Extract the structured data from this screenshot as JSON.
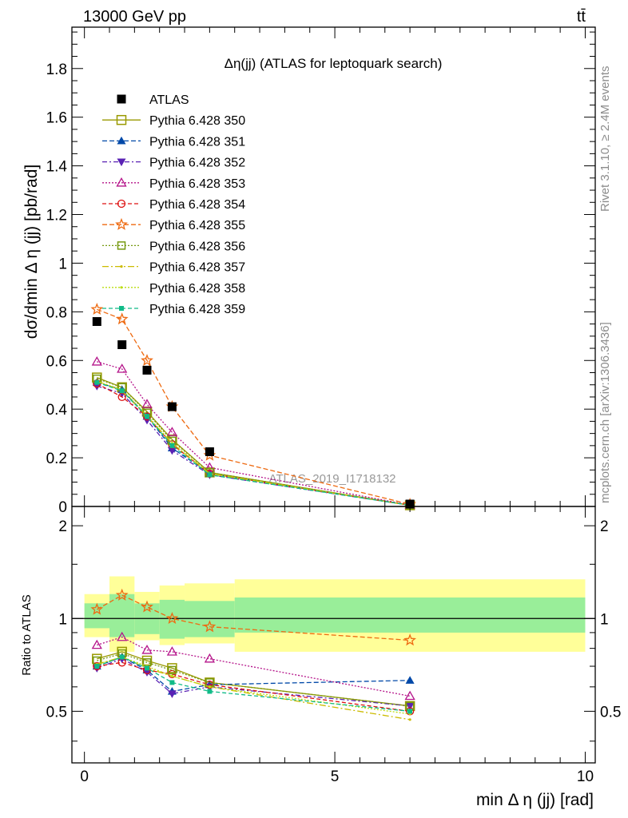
{
  "header": {
    "left_label": "13000 GeV pp",
    "right_label": "tt̄"
  },
  "side_labels": {
    "rivet": "Rivet 3.1.10, ≥ 2.4M events",
    "mcplots": "mcplots.cern.ch [arXiv:1306.3436]"
  },
  "chart_data": [
    {
      "type": "scatter",
      "title": "Δη(jj) (ATLAS for leptoquark search)",
      "watermark": "ATLAS_2019_I1718132",
      "ylabel": "dσ/dmin Δ η (jj) [pb/rad]",
      "xlabel": "min Δ η (jj) [rad]",
      "xlim": [
        -0.25,
        10.2
      ],
      "ylim": [
        0,
        1.97
      ],
      "x_ticks": [
        0,
        5,
        10
      ],
      "y_ticks": [
        0,
        0.2,
        0.4,
        0.6,
        0.8,
        1,
        1.2,
        1.4,
        1.6,
        1.8
      ],
      "y_tick_labels": [
        "0",
        "0.2",
        "0.4",
        "0.6",
        "0.8",
        "1",
        "1.2",
        "1.4",
        "1.6",
        "1.8"
      ],
      "legend_position": "top-left",
      "x": [
        0.25,
        0.75,
        1.25,
        1.75,
        2.5,
        6.5
      ],
      "series": [
        {
          "name": "ATLAS",
          "color": "#000000",
          "marker": "square-filled",
          "dash": "none",
          "values": [
            0.76,
            0.665,
            0.56,
            0.41,
            0.225,
            0.01
          ]
        },
        {
          "name": "Pythia 6.428 350",
          "color": "#999900",
          "marker": "square-open",
          "dash": "solid",
          "values": [
            0.53,
            0.49,
            0.39,
            0.275,
            0.14,
            0.005
          ]
        },
        {
          "name": "Pythia 6.428 351",
          "color": "#0048a8",
          "marker": "triangle-up",
          "dash": "6,3",
          "values": [
            0.51,
            0.48,
            0.37,
            0.24,
            0.135,
            0.006
          ]
        },
        {
          "name": "Pythia 6.428 352",
          "color": "#5a22b4",
          "marker": "triangle-down",
          "dash": "6,3,2,3",
          "values": [
            0.495,
            0.465,
            0.355,
            0.23,
            0.13,
            0.005
          ]
        },
        {
          "name": "Pythia 6.428 353",
          "color": "#b5148a",
          "marker": "triangle-open",
          "dash": "2,2",
          "values": [
            0.595,
            0.565,
            0.42,
            0.305,
            0.16,
            0.006
          ]
        },
        {
          "name": "Pythia 6.428 354",
          "color": "#dd1111",
          "marker": "circle-open",
          "dash": "5,3",
          "values": [
            0.505,
            0.45,
            0.37,
            0.255,
            0.135,
            0.005
          ]
        },
        {
          "name": "Pythia 6.428 355",
          "color": "#ee6a11",
          "marker": "star-open",
          "dash": "6,3",
          "values": [
            0.81,
            0.77,
            0.6,
            0.41,
            0.21,
            0.009
          ]
        },
        {
          "name": "Pythia 6.428 356",
          "color": "#779911",
          "marker": "square-open-small",
          "dash": "2,2",
          "values": [
            0.525,
            0.49,
            0.385,
            0.27,
            0.14,
            0.005
          ]
        },
        {
          "name": "Pythia 6.428 357",
          "color": "#ccbb00",
          "marker": "dot",
          "dash": "8,3,2,3",
          "values": [
            0.515,
            0.475,
            0.37,
            0.26,
            0.135,
            0.005
          ]
        },
        {
          "name": "Pythia 6.428 358",
          "color": "#bbdd11",
          "marker": "dot",
          "dash": "2,2",
          "values": [
            0.515,
            0.48,
            0.375,
            0.26,
            0.135,
            0.005
          ]
        },
        {
          "name": "Pythia 6.428 359",
          "color": "#11bb88",
          "marker": "square-small",
          "dash": "5,3",
          "values": [
            0.51,
            0.475,
            0.37,
            0.25,
            0.13,
            0.005
          ]
        }
      ]
    },
    {
      "type": "scatter",
      "ylabel": "Ratio to ATLAS",
      "xlabel": "min Δ η (jj) [rad]",
      "xlim": [
        -0.25,
        10.2
      ],
      "ylim": [
        0.34,
        2.31
      ],
      "y_ticks": [
        0.5,
        1,
        2
      ],
      "y_tick_labels": [
        "0.5",
        "1",
        "2"
      ],
      "x_ticks": [
        0,
        5,
        10
      ],
      "x_tick_labels": [
        "0",
        "5",
        "10"
      ],
      "reference_line": 1,
      "bands": {
        "edges": [
          0,
          0.5,
          1.0,
          1.5,
          2.0,
          3.0,
          10.0
        ],
        "inner": [
          [
            0.93,
            1.12
          ],
          [
            0.87,
            1.2
          ],
          [
            0.89,
            1.12
          ],
          [
            0.86,
            1.15
          ],
          [
            0.87,
            1.14
          ],
          [
            0.9,
            1.17
          ]
        ],
        "outer": [
          [
            0.87,
            1.2
          ],
          [
            0.78,
            1.37
          ],
          [
            0.85,
            1.22
          ],
          [
            0.82,
            1.28
          ],
          [
            0.83,
            1.3
          ],
          [
            0.78,
            1.34
          ]
        ],
        "inner_color": "#99ee99",
        "outer_color": "#ffff99"
      },
      "x": [
        0.25,
        0.75,
        1.25,
        1.75,
        2.5,
        6.5
      ],
      "series": [
        {
          "name": "Pythia 6.428 350",
          "values": [
            0.74,
            0.78,
            0.73,
            0.69,
            0.62,
            0.52
          ]
        },
        {
          "name": "Pythia 6.428 351",
          "values": [
            0.7,
            0.75,
            0.68,
            0.58,
            0.61,
            0.63
          ]
        },
        {
          "name": "Pythia 6.428 352",
          "values": [
            0.69,
            0.74,
            0.67,
            0.57,
            0.6,
            0.52
          ]
        },
        {
          "name": "Pythia 6.428 353",
          "values": [
            0.82,
            0.87,
            0.79,
            0.78,
            0.74,
            0.56
          ]
        },
        {
          "name": "Pythia 6.428 354",
          "values": [
            0.7,
            0.72,
            0.68,
            0.66,
            0.61,
            0.5
          ]
        },
        {
          "name": "Pythia 6.428 355",
          "values": [
            1.07,
            1.19,
            1.09,
            1.0,
            0.94,
            0.85
          ]
        },
        {
          "name": "Pythia 6.428 356",
          "values": [
            0.73,
            0.77,
            0.72,
            0.68,
            0.62,
            0.52
          ]
        },
        {
          "name": "Pythia 6.428 357",
          "values": [
            0.71,
            0.75,
            0.69,
            0.65,
            0.6,
            0.47
          ]
        },
        {
          "name": "Pythia 6.428 358",
          "values": [
            0.71,
            0.75,
            0.7,
            0.65,
            0.6,
            0.49
          ]
        },
        {
          "name": "Pythia 6.428 359",
          "values": [
            0.7,
            0.75,
            0.69,
            0.62,
            0.58,
            0.5
          ]
        }
      ]
    }
  ]
}
